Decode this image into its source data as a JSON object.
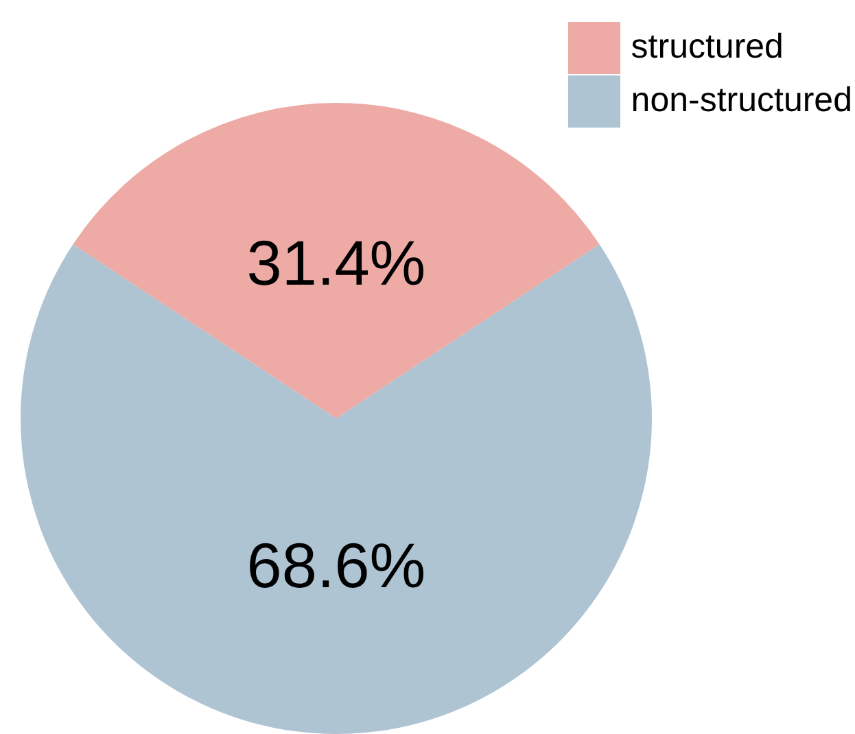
{
  "chart_data": {
    "type": "pie",
    "categories": [
      "structured",
      "non-structured"
    ],
    "values": [
      31.4,
      68.6
    ],
    "colors": [
      "#eeaaa5",
      "#aec4d3"
    ],
    "value_labels": [
      "31.4%",
      "68.6%"
    ],
    "legend": "top right"
  }
}
